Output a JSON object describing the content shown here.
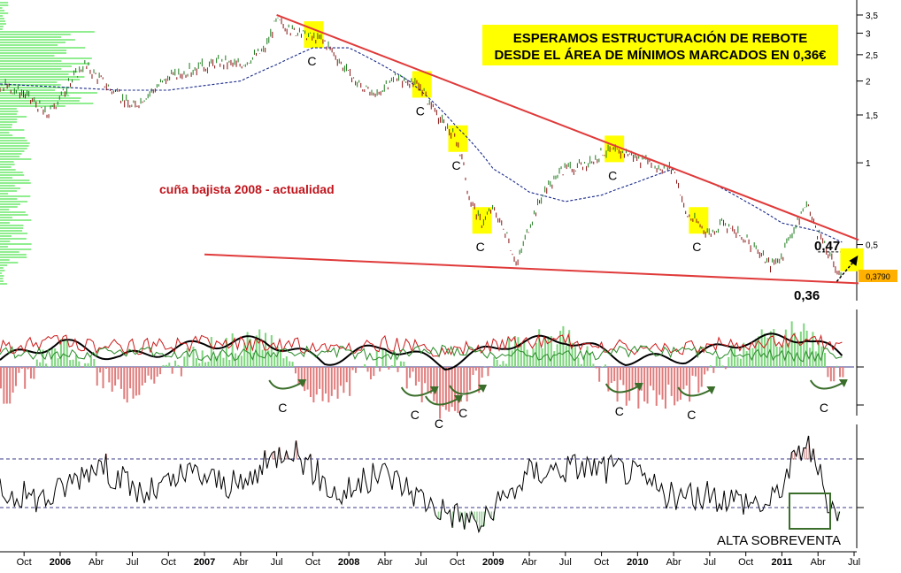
{
  "colors": {
    "price_up": "#1a7a1a",
    "price_down": "#8a1010",
    "trendline": "#e03a3a",
    "moving_average": "#1a2a8a",
    "highlight": "#ffff00",
    "volume_profile": "#90ee90",
    "osc_positive": "#7ed67e",
    "osc_negative": "#e07c7c",
    "osc_black": "#000000",
    "osc_red": "#cc1a1a",
    "osc_green": "#2a8a2a",
    "arrow": "#3a6e2a",
    "price_tag": "#ffb000",
    "title_text": "#000000",
    "wedge_text": "#c0141c"
  },
  "annotations": {
    "headline_line1": "ESPERAMOS ESTRUCTURACIÓN DE REBOTE",
    "headline_line2": "DESDE EL ÁREA DE MÍNIMOS MARCADOS EN 0,36€",
    "wedge_label": "cuña bajista 2008 - actualidad",
    "level_high": "0,47",
    "level_low": "0,36",
    "price_tag": "0,3790",
    "oversold_label": "ALTA SOBREVENTA",
    "c_label": "C"
  },
  "chart_data": [
    {
      "type": "line",
      "panel": "price",
      "scale": "log",
      "ylim": [
        0.33,
        3.8
      ],
      "y_ticks": [
        "3,5",
        "3",
        "2,5",
        "2",
        "1,5",
        "1",
        "0,5"
      ],
      "y_tick_values": [
        3.5,
        3,
        2.5,
        2,
        1.5,
        1,
        0.5
      ],
      "x_ticks": [
        "Oct",
        "2006",
        "Abr",
        "Jul",
        "Oct",
        "2007",
        "Abr",
        "Jul",
        "Oct",
        "2008",
        "Abr",
        "Jul",
        "Oct",
        "2009",
        "Abr",
        "Jul",
        "Oct",
        "2010",
        "Abr",
        "Jul",
        "Oct",
        "2011",
        "Abr",
        "Jul"
      ],
      "x_tick_values": [
        "2005-10",
        "2006-01",
        "2006-04",
        "2006-07",
        "2006-10",
        "2007-01",
        "2007-04",
        "2007-07",
        "2007-10",
        "2008-01",
        "2008-04",
        "2008-07",
        "2008-10",
        "2009-01",
        "2009-04",
        "2009-07",
        "2009-10",
        "2010-01",
        "2010-04",
        "2010-07",
        "2010-10",
        "2011-01",
        "2011-04",
        "2011-07"
      ],
      "xlim": [
        "2005-08",
        "2011-07"
      ],
      "series": [
        {
          "x": [
            "2005-08",
            "2005-10",
            "2005-12",
            "2006-01",
            "2006-03",
            "2006-05",
            "2006-07",
            "2006-08",
            "2006-10",
            "2006-12",
            "2007-02",
            "2007-04",
            "2007-06",
            "2007-07",
            "2007-08",
            "2007-10",
            "2007-11",
            "2008-01",
            "2008-03",
            "2008-05",
            "2008-07",
            "2008-08",
            "2008-10",
            "2008-11",
            "2008-12",
            "2009-01",
            "2009-03",
            "2009-05",
            "2009-07",
            "2009-09",
            "2009-10",
            "2009-12",
            "2010-02",
            "2010-04",
            "2010-05",
            "2010-07",
            "2010-08",
            "2010-10",
            "2010-12",
            "2011-01",
            "2011-03",
            "2011-04",
            "2011-05",
            "2011-06"
          ],
          "values": [
            1.95,
            1.8,
            1.5,
            1.75,
            2.3,
            1.9,
            1.6,
            1.75,
            2.05,
            2.2,
            2.35,
            2.3,
            2.6,
            3.35,
            3.1,
            2.9,
            2.8,
            2.1,
            1.75,
            2.05,
            1.9,
            1.55,
            1.2,
            0.75,
            0.6,
            0.68,
            0.42,
            0.75,
            0.95,
            0.98,
            1.1,
            1.1,
            0.98,
            0.95,
            0.65,
            0.55,
            0.6,
            0.52,
            0.42,
            0.45,
            0.7,
            0.55,
            0.45,
            0.38
          ]
        },
        {
          "x": [
            "2005-08",
            "2006-06",
            "2006-10",
            "2007-04",
            "2007-07",
            "2007-10",
            "2008-01",
            "2008-06",
            "2008-10",
            "2009-01",
            "2009-04",
            "2009-07",
            "2009-10",
            "2010-01",
            "2010-04",
            "2010-07",
            "2010-10",
            "2011-01",
            "2011-04",
            "2011-06"
          ],
          "values": [
            1.95,
            1.85,
            1.85,
            2.0,
            2.3,
            2.65,
            2.65,
            2.0,
            1.35,
            0.95,
            0.78,
            0.72,
            0.76,
            0.85,
            0.95,
            0.85,
            0.72,
            0.6,
            0.56,
            0.51
          ]
        }
      ],
      "trendlines": [
        {
          "x": [
            "2007-07",
            "2011-07"
          ],
          "values": [
            3.5,
            0.52
          ]
        },
        {
          "x": [
            "2007-01",
            "2011-07"
          ],
          "values": [
            0.46,
            0.36
          ]
        }
      ],
      "levels": [
        0.47,
        0.36
      ],
      "highlights": [
        "2007-10",
        "2008-07",
        "2008-10",
        "2008-12",
        "2009-11",
        "2010-06"
      ]
    },
    {
      "type": "area",
      "panel": "oscillator",
      "ylim": [
        -1,
        1
      ],
      "x": [
        "2005-08",
        "2006-01",
        "2006-06",
        "2007-01",
        "2007-06",
        "2007-11",
        "2008-04",
        "2008-09",
        "2009-02",
        "2009-07",
        "2009-12",
        "2010-05",
        "2010-10",
        "2011-03",
        "2011-06"
      ],
      "values": [
        -0.6,
        0.4,
        -0.5,
        0.3,
        0.5,
        -0.7,
        0.2,
        -0.9,
        0.3,
        0.6,
        -0.6,
        -0.5,
        0.5,
        0.7,
        -0.4
      ],
      "marked_bottoms": [
        "2007-08",
        "2008-07",
        "2008-09",
        "2008-11",
        "2009-12",
        "2010-06",
        "2011-05"
      ]
    },
    {
      "type": "line",
      "panel": "rsi",
      "levels": [
        70,
        30
      ],
      "ylim": [
        10,
        90
      ],
      "x": [
        "2005-08",
        "2005-12",
        "2006-04",
        "2006-08",
        "2006-12",
        "2007-04",
        "2007-08",
        "2007-12",
        "2008-04",
        "2008-08",
        "2008-12",
        "2009-04",
        "2009-08",
        "2009-12",
        "2010-04",
        "2010-08",
        "2010-12",
        "2011-03",
        "2011-05",
        "2011-06"
      ],
      "values": [
        45,
        40,
        68,
        42,
        60,
        48,
        82,
        42,
        60,
        35,
        20,
        60,
        65,
        62,
        40,
        42,
        35,
        85,
        35,
        28
      ],
      "oversold_box": "2011-05"
    }
  ]
}
